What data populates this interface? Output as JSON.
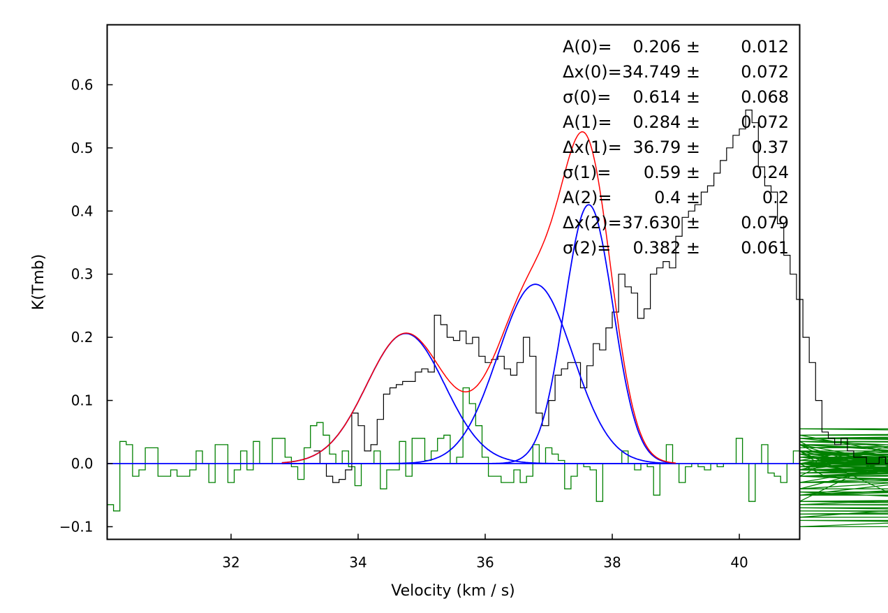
{
  "chart_data": {
    "type": "line",
    "title": "",
    "xlabel": "Velocity (km / s)",
    "ylabel": "K(Tmb)",
    "xlim": [
      30.05,
      40.95
    ],
    "ylim": [
      -0.12,
      0.695
    ],
    "grid": false,
    "legend": "none",
    "x_ticks": [
      32,
      34,
      36,
      38,
      40
    ],
    "x_tick_labels": [
      "32",
      "34",
      "36",
      "38",
      "40"
    ],
    "y_ticks": [
      -0.1,
      0.0,
      0.1,
      0.2,
      0.3,
      0.4,
      0.5,
      0.6
    ],
    "y_tick_labels": [
      "−0.1",
      "0.0",
      "0.1",
      "0.2",
      "0.3",
      "0.4",
      "0.5",
      "0.6"
    ],
    "annotations": [
      {
        "label": "A(0)=",
        "value": "0.206 ±",
        "error": "0.012"
      },
      {
        "label": "Δx(0)=",
        "value": "34.749 ±",
        "error": "0.072"
      },
      {
        "label": "σ(0)=",
        "value": "0.614 ±",
        "error": "0.068"
      },
      {
        "label": "A(1)=",
        "value": "0.284 ±",
        "error": "0.072"
      },
      {
        "label": "Δx(1)=",
        "value": "36.79 ±",
        "error": "0.37"
      },
      {
        "label": "σ(1)=",
        "value": "0.59 ±",
        "error": "0.24"
      },
      {
        "label": "A(2)=",
        "value": "0.4 ±",
        "error": "0.2"
      },
      {
        "label": "Δx(2)=",
        "value": "37.630 ±",
        "error": "0.079"
      },
      {
        "label": "σ(2)=",
        "value": "0.382 ±",
        "error": "0.061"
      }
    ],
    "colors": {
      "spectrum": "#000000",
      "total_fit": "#ff0000",
      "components": "#0000ff",
      "residual": "#008000",
      "baseline": "#0000ff"
    },
    "gaussian_components": [
      {
        "amplitude": 0.206,
        "center": 34.749,
        "sigma": 0.614
      },
      {
        "amplitude": 0.284,
        "center": 36.79,
        "sigma": 0.59
      },
      {
        "amplitude": 0.41,
        "center": 37.63,
        "sigma": 0.382
      }
    ],
    "channel_width": 0.1,
    "x_start": 30.05,
    "series": [
      {
        "kind": "spectrum-step",
        "x_range": [
          33.3,
          38.65
        ],
        "values": [
          0.02,
          0.0,
          -0.02,
          -0.03,
          -0.025,
          -0.01,
          0.08,
          0.06,
          0.02,
          0.03,
          0.07,
          0.11,
          0.12,
          0.125,
          0.13,
          0.13,
          0.145,
          0.15,
          0.145,
          0.235,
          0.22,
          0.2,
          0.195,
          0.21,
          0.19,
          0.2,
          0.17,
          0.16,
          0.165,
          0.17,
          0.15,
          0.14,
          0.16,
          0.2,
          0.17,
          0.08,
          0.06,
          0.1,
          0.14,
          0.15,
          0.16,
          0.16,
          0.12,
          0.155,
          0.19,
          0.18,
          0.215,
          0.24,
          0.3,
          0.28,
          0.27,
          0.23,
          0.245,
          0.3,
          0.31,
          0.32,
          0.31,
          0.36,
          0.39,
          0.4,
          0.41,
          0.43,
          0.44,
          0.46,
          0.48,
          0.5,
          0.52,
          0.53,
          0.56,
          0.54,
          0.47,
          0.44,
          0.43,
          0.38,
          0.33,
          0.3,
          0.26,
          0.2,
          0.16,
          0.1,
          0.05,
          0.04,
          0.03,
          0.04,
          0.02,
          0.01,
          0.01,
          0.0,
          0.0,
          0.01,
          0.0,
          0.0,
          0.0,
          0.0,
          0.0,
          0.0,
          0.0,
          0.0,
          0.0,
          0.0,
          0.0,
          0.0,
          0.0,
          0.0
        ]
      },
      {
        "kind": "residual-step",
        "values": [
          -0.065,
          -0.075,
          0.035,
          0.03,
          -0.02,
          -0.01,
          0.025,
          0.025,
          -0.02,
          -0.02,
          -0.01,
          -0.02,
          -0.02,
          -0.01,
          0.02,
          0.0,
          -0.03,
          0.03,
          0.03,
          -0.03,
          -0.01,
          0.02,
          -0.01,
          0.035,
          0.0,
          0.0,
          0.04,
          0.04,
          0.01,
          -0.005,
          -0.025,
          0.025,
          0.06,
          0.065,
          0.045,
          0.015,
          0.0,
          0.02,
          -0.005,
          -0.035,
          0.0,
          0.0,
          0.02,
          -0.04,
          -0.01,
          -0.01,
          0.035,
          -0.02,
          0.04,
          0.04,
          0.005,
          0.02,
          0.04,
          0.045,
          0.0,
          0.01,
          0.12,
          0.095,
          0.06,
          0.01,
          -0.02,
          -0.02,
          -0.03,
          -0.03,
          -0.01,
          -0.03,
          -0.02,
          0.03,
          0.0,
          0.025,
          0.015,
          0.005,
          -0.04,
          -0.02,
          0.0,
          -0.005,
          -0.01,
          -0.06,
          0.0,
          0.0,
          0.0,
          0.02,
          0.0,
          -0.01,
          0.0,
          -0.005,
          -0.05,
          0.0,
          0.03,
          0.0,
          -0.03,
          -0.005,
          0.0,
          -0.005,
          -0.01,
          0.0,
          -0.005,
          0.0,
          0.0,
          0.04,
          0.0,
          -0.06,
          0.0,
          0.03,
          -0.015,
          -0.02,
          -0.03,
          0.0,
          0.02,
          0.035,
          0.03,
          0.02,
          0.0,
          -0.02,
          0.005,
          0.015,
          0.0,
          -0.01,
          0.0,
          0.0,
          0.02,
          -0.005,
          0.0,
          -0.01,
          0.03,
          0.02,
          -0.06,
          0.03,
          -0.005,
          0.0,
          0.03,
          -0.04,
          0.02,
          0.01,
          -0.01,
          -0.015,
          -0.005,
          0.0,
          0.02,
          -0.01,
          -0.005,
          0.02,
          0.0,
          0.01,
          -0.01,
          0.0,
          0.01,
          0.04,
          0.045,
          -0.03,
          0.04,
          0.0,
          -0.05,
          -0.03,
          -0.01,
          0.0,
          0.005,
          0.0,
          0.0,
          0.0,
          0.01,
          -0.02,
          0.0,
          -0.005,
          0.01,
          0.005,
          -0.015,
          0.0,
          0.0,
          -0.04,
          0.0,
          0.015,
          0.015,
          0.01,
          0.005,
          0.01,
          -0.005,
          -0.01,
          0.0,
          0.0,
          0.02,
          -0.05,
          0.035,
          0.03,
          0.0,
          0.0,
          0.0,
          0.0,
          0.0,
          0.0,
          0.0,
          0.0,
          0.0,
          0.0,
          -0.01,
          -0.02,
          0.02,
          -0.03,
          0.01,
          -0.02,
          -0.01,
          -0.03,
          -0.01,
          -0.045,
          -0.09,
          -0.1,
          -0.06,
          -0.05,
          0.0,
          0.01,
          0.015,
          -0.02,
          -0.05,
          -0.02,
          -0.065,
          -0.02,
          -0.06,
          -0.075,
          -0.08,
          -0.065,
          -0.07,
          -0.085,
          0.0,
          0.04,
          0.04,
          0.04,
          0.025,
          0.045,
          0.055,
          0.04,
          0.035,
          -0.01,
          -0.02,
          0.015,
          0.015,
          0.015,
          0.04
        ]
      }
    ]
  }
}
